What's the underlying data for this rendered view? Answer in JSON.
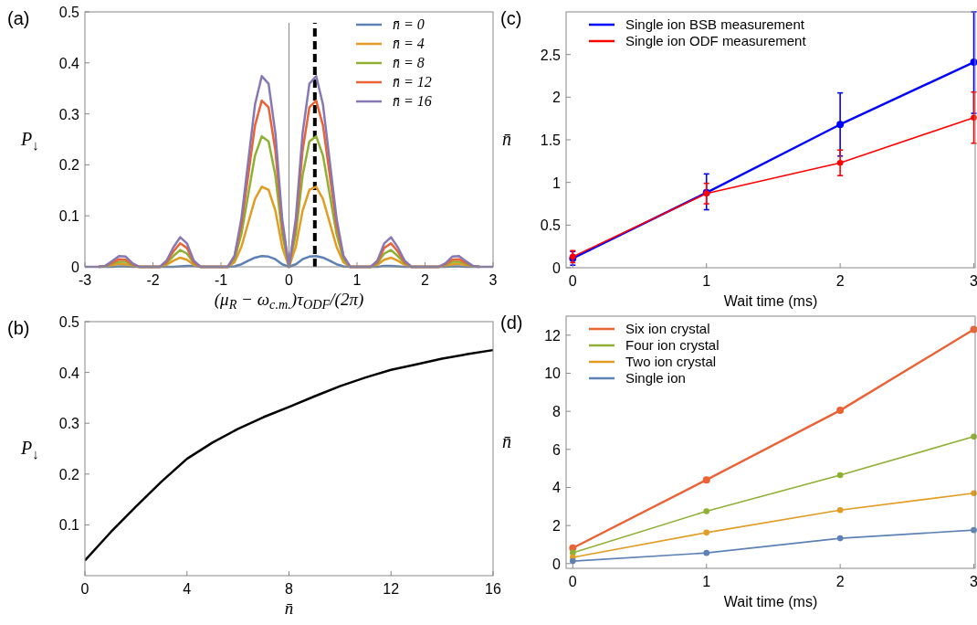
{
  "chart_data": [
    {
      "type": "line",
      "title": "(a)",
      "xlabel": "(μ$_{R}$ − ω$_{c.m.}$)τ$_{ODF}$/(2π)",
      "ylabel": "P$_{↓}$",
      "x": [
        -3,
        -2.9,
        -2.8,
        -2.7,
        -2.6,
        -2.5,
        -2.4,
        -2.3,
        -2.2,
        -2.1,
        -2,
        -1.9,
        -1.8,
        -1.7,
        -1.6,
        -1.5,
        -1.4,
        -1.3,
        -1.2,
        -1.1,
        -1,
        -0.9,
        -0.8,
        -0.7,
        -0.6,
        -0.5,
        -0.4,
        -0.3,
        -0.2,
        -0.1,
        0,
        0.1,
        0.2,
        0.3,
        0.4,
        0.5,
        0.6,
        0.7,
        0.8,
        0.9,
        1,
        1.1,
        1.2,
        1.3,
        1.4,
        1.5,
        1.6,
        1.7,
        1.8,
        1.9,
        2,
        2.1,
        2.2,
        2.3,
        2.4,
        2.5,
        2.6,
        2.7,
        2.8,
        2.9,
        3
      ],
      "series": [
        {
          "name": "n̄ = 0",
          "color": "#5e81b5",
          "values": [
            null,
            null,
            0,
            0,
            0,
            0.001,
            0.001,
            0,
            0,
            0,
            0,
            0,
            0,
            0,
            0.001,
            0.002,
            0.002,
            0,
            0,
            0,
            0,
            0,
            0.001,
            0.005,
            0.012,
            0.018,
            0.021,
            0.02,
            0.015,
            0.005,
            0,
            0.005,
            0.015,
            0.02,
            0.021,
            0.018,
            0.012,
            0.005,
            0.001,
            0,
            0,
            0,
            0,
            0,
            0.002,
            0.002,
            0.001,
            0,
            0,
            0,
            0,
            0,
            0,
            0,
            0.001,
            0.001,
            0,
            0,
            0,
            null,
            null
          ]
        },
        {
          "name": "n̄ = 4",
          "color": "#e19c24",
          "values": [
            null,
            null,
            0,
            0.001,
            0.003,
            0.006,
            0.005,
            0.002,
            0,
            0,
            0,
            0,
            0.004,
            0.012,
            0.018,
            0.014,
            0.004,
            0,
            0,
            0,
            0,
            0,
            0.009,
            0.039,
            0.086,
            0.133,
            0.157,
            0.151,
            0.11,
            0.039,
            0,
            0.039,
            0.11,
            0.151,
            0.157,
            0.133,
            0.086,
            0.039,
            0.009,
            0,
            0,
            0,
            0,
            0.004,
            0.014,
            0.018,
            0.012,
            0.004,
            0,
            0,
            0,
            0,
            0,
            0.002,
            0.005,
            0.006,
            0.003,
            0.001,
            0,
            null,
            null
          ]
        },
        {
          "name": "n̄ = 8",
          "color": "#8fb032",
          "values": [
            null,
            null,
            0,
            0.001,
            0.006,
            0.01,
            0.01,
            0.003,
            0,
            0,
            0,
            0,
            0.007,
            0.021,
            0.033,
            0.026,
            0.007,
            0,
            0,
            0,
            0,
            0,
            0.015,
            0.064,
            0.141,
            0.218,
            0.256,
            0.246,
            0.179,
            0.064,
            0,
            0.064,
            0.179,
            0.246,
            0.256,
            0.218,
            0.141,
            0.064,
            0.015,
            0,
            0,
            0,
            0,
            0.007,
            0.026,
            0.033,
            0.021,
            0.007,
            0,
            0,
            0,
            0,
            0,
            0.003,
            0.01,
            0.01,
            0.006,
            0.001,
            0,
            null,
            null
          ]
        },
        {
          "name": "n̄ = 12",
          "color": "#eb6235",
          "values": [
            null,
            null,
            0,
            0.002,
            0.008,
            0.015,
            0.014,
            0.005,
            0,
            0,
            0,
            0,
            0.009,
            0.03,
            0.046,
            0.037,
            0.009,
            0,
            0,
            0,
            0,
            0,
            0.02,
            0.082,
            0.179,
            0.277,
            0.326,
            0.313,
            0.228,
            0.082,
            0,
            0.082,
            0.228,
            0.313,
            0.326,
            0.277,
            0.179,
            0.082,
            0.02,
            0,
            0,
            0,
            0,
            0.009,
            0.037,
            0.046,
            0.03,
            0.009,
            0,
            0,
            0,
            0,
            0,
            0.005,
            0.014,
            0.015,
            0.008,
            0.002,
            0,
            null,
            null
          ]
        },
        {
          "name": "n̄ = 16",
          "color": "#8778b3",
          "values": [
            0,
            0,
            0,
            0.002,
            0.011,
            0.021,
            0.02,
            0.007,
            0,
            0,
            0,
            0,
            0.012,
            0.038,
            0.058,
            0.046,
            0.012,
            0,
            0,
            0,
            0,
            0,
            0.022,
            0.094,
            0.206,
            0.318,
            0.374,
            0.359,
            0.262,
            0.094,
            0,
            0.094,
            0.262,
            0.359,
            0.374,
            0.318,
            0.206,
            0.094,
            0.022,
            0,
            0,
            0,
            0,
            0.012,
            0.046,
            0.058,
            0.038,
            0.012,
            0,
            0,
            0,
            0,
            0,
            0.007,
            0.02,
            0.021,
            0.011,
            0.002,
            0,
            0,
            0
          ]
        }
      ],
      "xlim": [
        -3,
        3
      ],
      "xticks": [
        -3,
        -2,
        -1,
        0,
        1,
        2,
        3
      ],
      "ylim": [
        0,
        0.5
      ],
      "yticks": [
        0,
        0.1,
        0.2,
        0.3,
        0.4,
        0.5
      ],
      "ref_lines": [
        {
          "axis": "x",
          "value": 0,
          "color": "#888888",
          "line_style": "solid"
        },
        {
          "axis": "x",
          "value": 0.38,
          "color": "#000000",
          "line_style": "dashed"
        }
      ],
      "legend": "top right",
      "marker": "none",
      "grid": false
    },
    {
      "type": "line",
      "title": "(b)",
      "xlabel": "n̄",
      "ylabel": "P$_{↓}$",
      "x": [
        0,
        1,
        2,
        3,
        4,
        5,
        6,
        7,
        8,
        9,
        10,
        11,
        12,
        13,
        14,
        15,
        16
      ],
      "series": [
        {
          "color": "#000000",
          "values": [
            0.03,
            0.085,
            0.136,
            0.185,
            0.23,
            0.262,
            0.289,
            0.312,
            0.332,
            0.353,
            0.373,
            0.39,
            0.405,
            0.416,
            0.427,
            0.436,
            0.444
          ]
        }
      ],
      "xlim": [
        0,
        16
      ],
      "xticks": [
        0,
        4,
        8,
        12,
        16
      ],
      "ylim": [
        0,
        0.5
      ],
      "yticks": [
        0.1,
        0.2,
        0.3,
        0.4,
        0.5
      ],
      "marker": "none",
      "grid": false
    },
    {
      "type": "line",
      "title": "(c)",
      "xlabel": "Wait time (ms)",
      "ylabel": "n̄",
      "x": [
        0,
        1,
        2,
        3
      ],
      "series": [
        {
          "name": "Single ion BSB measurement",
          "color": "#0000ff",
          "values": [
            0.11,
            0.88,
            1.68,
            2.41
          ],
          "errors": [
            [
              0.03,
              0.19
            ],
            [
              0.68,
              1.1
            ],
            [
              1.31,
              2.05
            ],
            [
              1.81,
              3.0
            ]
          ]
        },
        {
          "name": "Single ion ODF measurement",
          "color": "#ff0000",
          "values": [
            0.13,
            0.87,
            1.23,
            1.76
          ],
          "errors": [
            [
              0.06,
              0.2
            ],
            [
              0.75,
              0.99
            ],
            [
              1.08,
              1.38
            ],
            [
              1.46,
              2.06
            ]
          ]
        }
      ],
      "xlim": [
        -0.05,
        3.01
      ],
      "xticks": [
        0,
        1,
        2,
        3
      ],
      "ylim": [
        0,
        3
      ],
      "yticks": [
        0,
        0.5,
        1,
        1.5,
        2,
        2.5
      ],
      "legend": "top left",
      "marker": "circle",
      "grid": false
    },
    {
      "type": "line",
      "title": "(d)",
      "xlabel": "Wait time (ms)",
      "ylabel": "n̄",
      "x": [
        0,
        1,
        2,
        3
      ],
      "series": [
        {
          "name": "Six ion crystal",
          "color": "#eb6235",
          "values": [
            0.82,
            4.4,
            8.05,
            12.3
          ]
        },
        {
          "name": "Four ion crystal",
          "color": "#8fb032",
          "values": [
            0.57,
            2.75,
            4.65,
            6.67
          ]
        },
        {
          "name": "Two ion crystal",
          "color": "#e19c24",
          "values": [
            0.33,
            1.63,
            2.81,
            3.7
          ]
        },
        {
          "name": "Single ion",
          "color": "#5e81b5",
          "values": [
            0.13,
            0.56,
            1.33,
            1.76
          ]
        }
      ],
      "xlim": [
        -0.05,
        3.01
      ],
      "xticks": [
        0,
        1,
        2,
        3
      ],
      "ylim": [
        -0.25,
        13
      ],
      "yticks": [
        0,
        2,
        4,
        6,
        8,
        10,
        12
      ],
      "legend": "top left",
      "marker": "circle",
      "grid": false
    }
  ]
}
